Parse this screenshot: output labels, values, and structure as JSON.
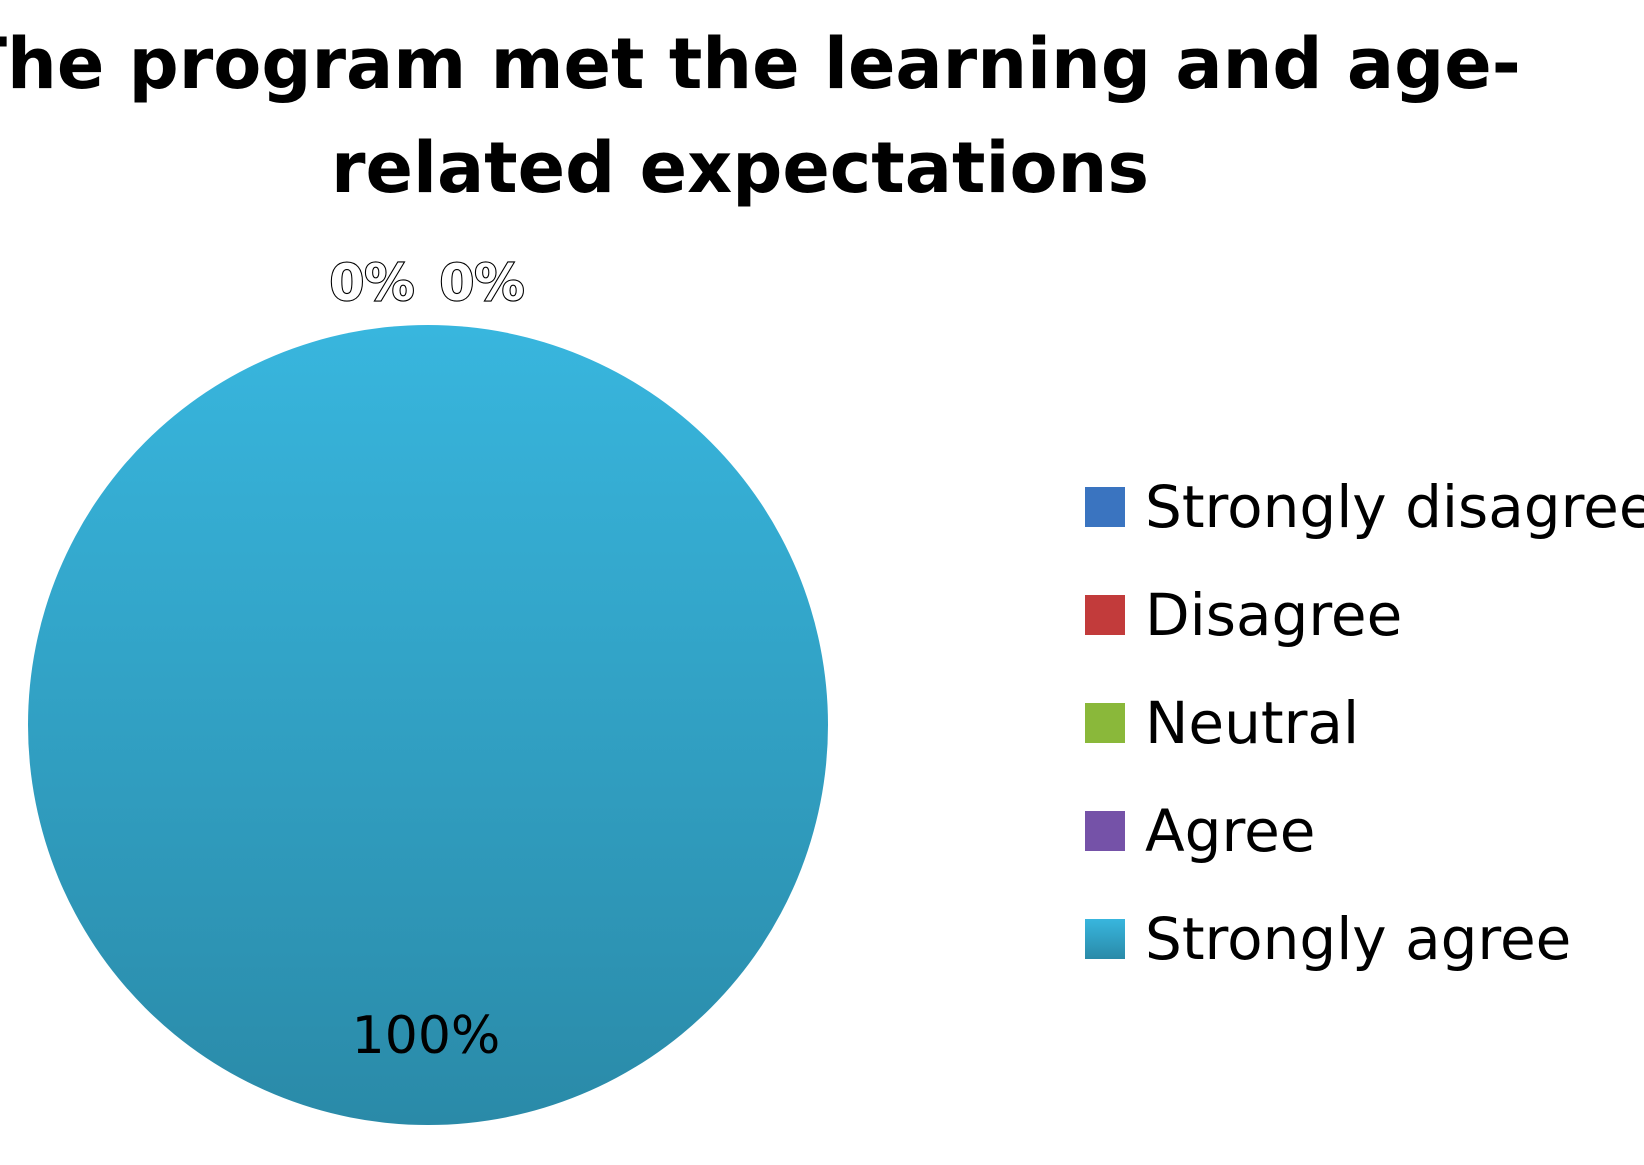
{
  "chart_data": {
    "type": "pie",
    "title": "The program met the learning and age-related expectations",
    "title_lines": [
      "The program met the learning and age-",
      "related expectations"
    ],
    "categories": [
      "Strongly disagree",
      "Disagree",
      "Neutral",
      "Agree",
      "Strongly agree"
    ],
    "values": [
      0,
      0,
      0,
      0,
      100
    ],
    "data_labels": [
      "0%",
      "0%",
      "",
      "",
      "100%"
    ],
    "colors": [
      "#3a74c0",
      "#c23b3b",
      "#8ab83a",
      "#7552a8",
      "#35aed6"
    ],
    "legend_position": "right"
  }
}
